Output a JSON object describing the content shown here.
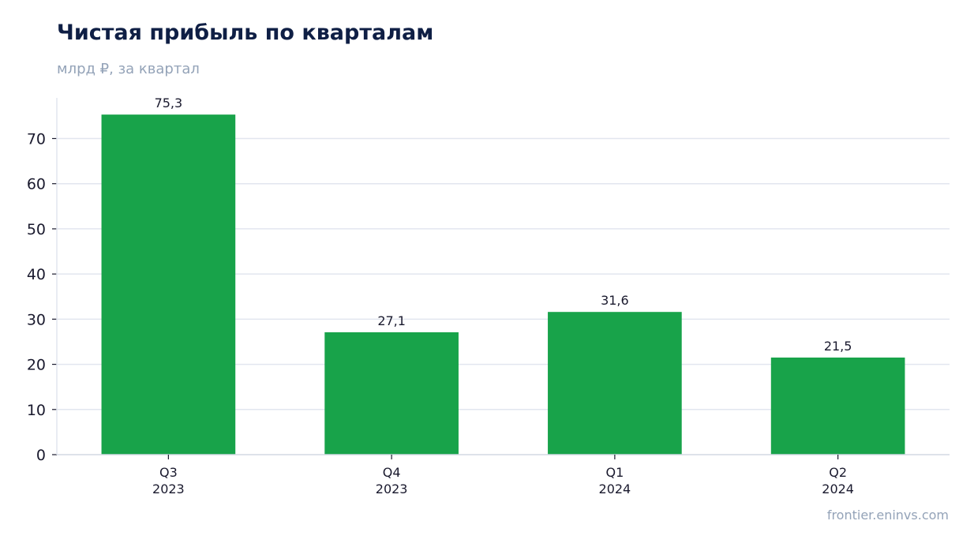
{
  "header": {
    "title": "Чистая прибыль по кварталам",
    "subtitle": "млрд ₽, за квартал"
  },
  "footer": {
    "source": "frontier.eninvs.com"
  },
  "colors": {
    "bar": "#18a34a",
    "grid": "#e2e6ef",
    "title": "#0f1f45",
    "muted": "#94a3b8"
  },
  "chart_data": {
    "type": "bar",
    "title": "Чистая прибыль по кварталам",
    "subtitle": "млрд ₽, за квартал",
    "categories": [
      [
        "Q3",
        "2023"
      ],
      [
        "Q4",
        "2023"
      ],
      [
        "Q1",
        "2024"
      ],
      [
        "Q2",
        "2024"
      ]
    ],
    "values": [
      75.3,
      27.1,
      31.6,
      21.5
    ],
    "value_labels": [
      "75,3",
      "27,1",
      "31,6",
      "21,5"
    ],
    "xlabel": "",
    "ylabel": "",
    "ylim": [
      0,
      79
    ],
    "yticks": [
      0,
      10,
      20,
      30,
      40,
      50,
      60,
      70
    ],
    "grid": true,
    "legend": "none"
  }
}
